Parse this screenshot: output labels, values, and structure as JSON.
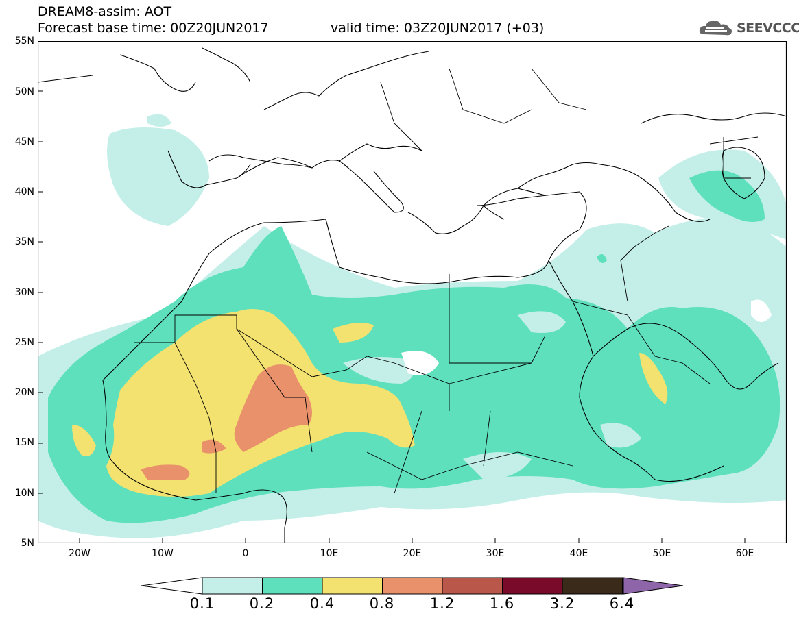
{
  "header": {
    "title": "DREAM8-assim: AOT",
    "base_time": "Forecast base time: 00Z20JUN2017",
    "valid_time": "valid time: 03Z20JUN2017 (+03)",
    "logo_text": "SEEVCCC",
    "logo_icon": "cloud-icon"
  },
  "map": {
    "lon_range": [
      -25,
      65
    ],
    "lat_range": [
      5,
      55
    ],
    "lat_labels": [
      "55N",
      "50N",
      "45N",
      "40N",
      "35N",
      "30N",
      "25N",
      "20N",
      "15N",
      "10N",
      "5N"
    ],
    "lon_labels": [
      "20W",
      "10W",
      "0",
      "10E",
      "20E",
      "30E",
      "40E",
      "50E",
      "60E"
    ]
  },
  "colorbar": {
    "labels": [
      "0.1",
      "0.2",
      "0.4",
      "0.8",
      "1.2",
      "1.6",
      "3.2",
      "6.4"
    ],
    "colors": [
      "#c4efe9",
      "#5fe0bd",
      "#f3e26f",
      "#e8916b",
      "#b9584a",
      "#7a0a2a",
      "#3a2a1a",
      "#8d65a8"
    ],
    "low_color": "#ffffff"
  }
}
